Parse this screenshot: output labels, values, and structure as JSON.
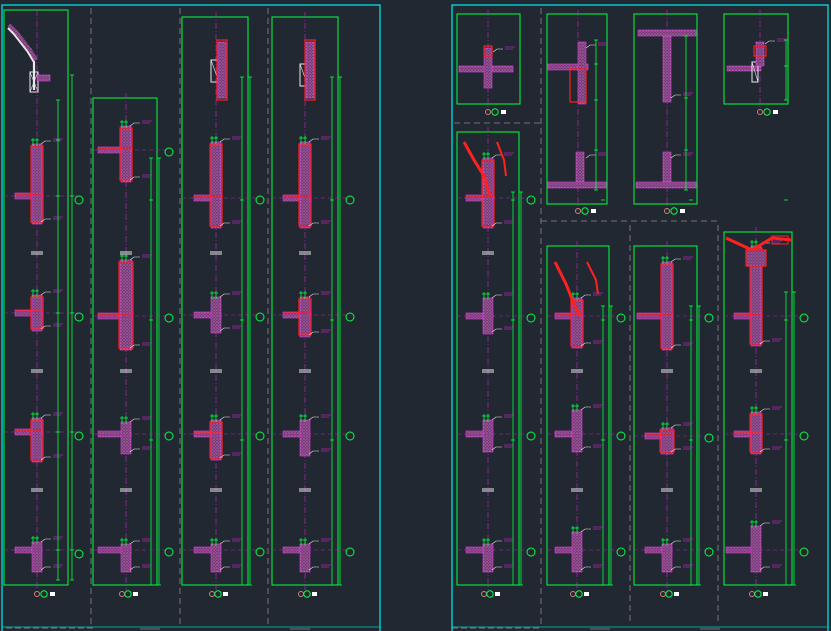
{
  "drawing": {
    "type": "CAD wall section details",
    "background": "#222831",
    "colors": {
      "frame": "#00c8c8",
      "dimension": "#00ff40",
      "column": "#e040e0",
      "rebar": "#ff2020",
      "leader": "#e8e8e8",
      "centerline": "#d020d0",
      "grid_bubble": "#00ff40",
      "dashed": "#8a8a8a"
    }
  },
  "sheets": [
    {
      "name": "sheet-left",
      "title_block": "",
      "detail_count": 4
    },
    {
      "name": "sheet-right",
      "title_block": "",
      "detail_count": 8
    }
  ]
}
